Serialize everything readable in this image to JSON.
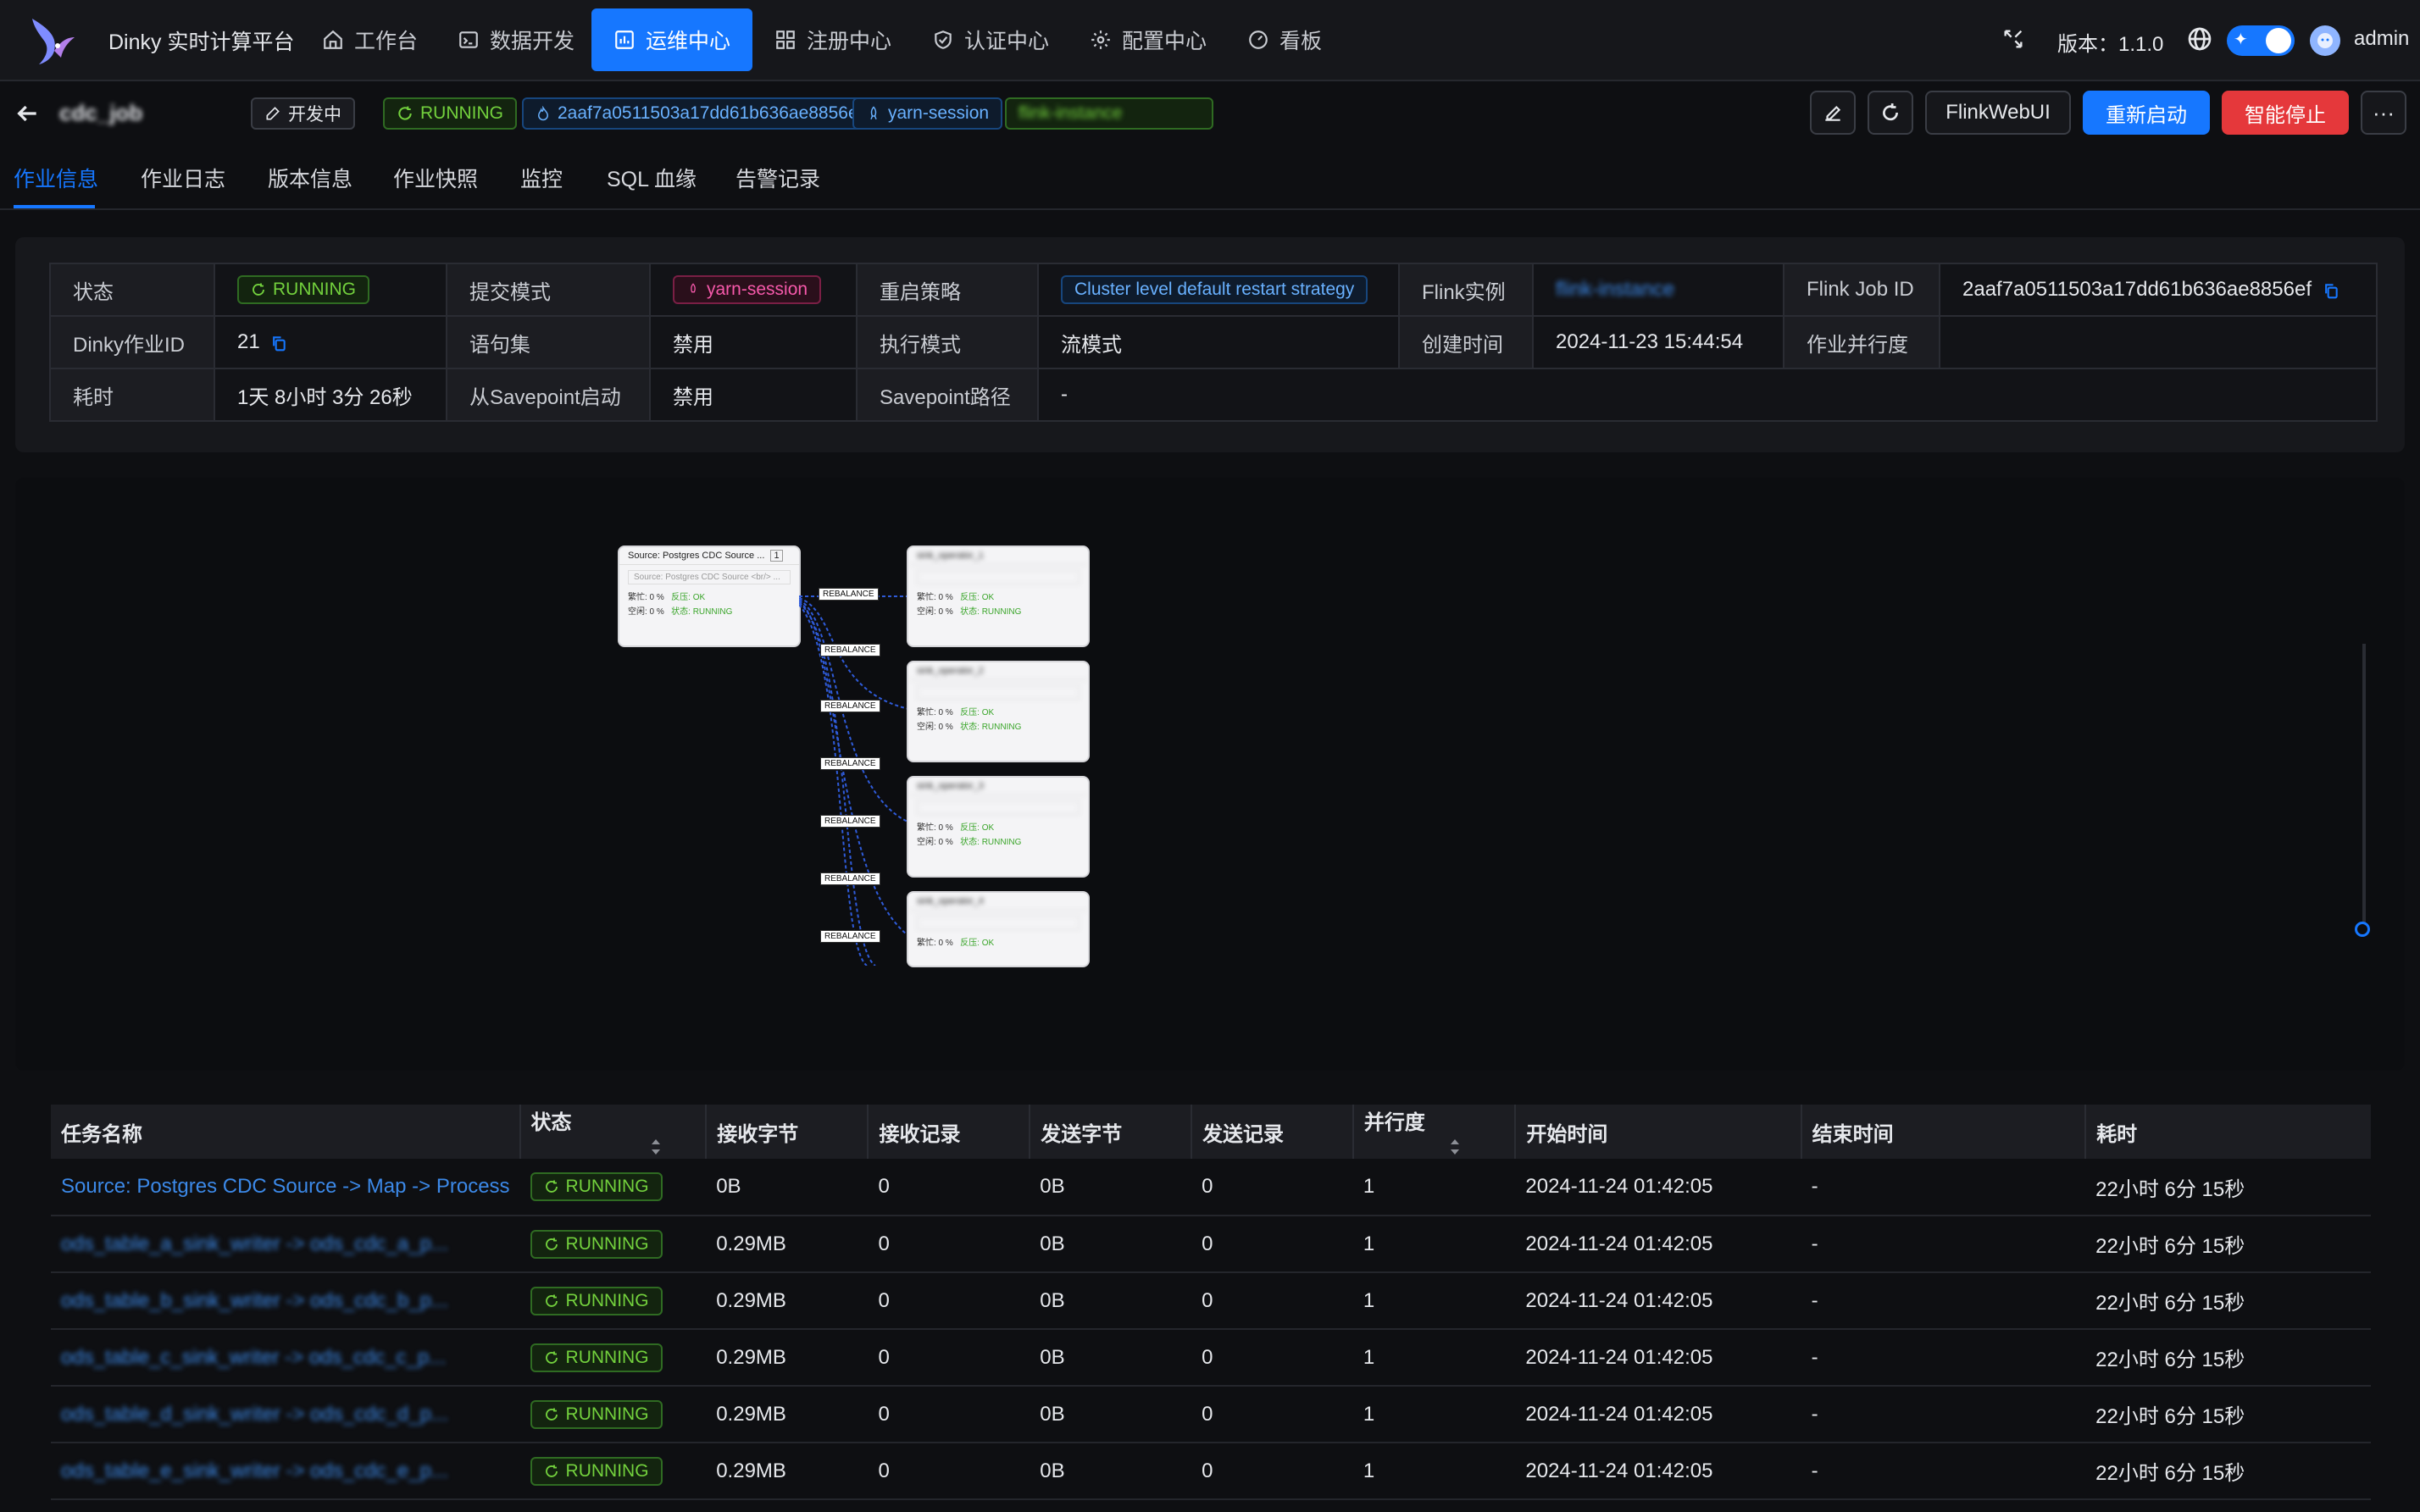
{
  "app": {
    "title": "Dinky 实时计算平台"
  },
  "nav": [
    {
      "label": "工作台",
      "icon": "home-icon"
    },
    {
      "label": "数据开发",
      "icon": "terminal-icon"
    },
    {
      "label": "运维中心",
      "icon": "dashboard-icon",
      "active": true
    },
    {
      "label": "注册中心",
      "icon": "grid-icon"
    },
    {
      "label": "认证中心",
      "icon": "shield-icon"
    },
    {
      "label": "配置中心",
      "icon": "gear-icon"
    },
    {
      "label": "看板",
      "icon": "gauge-icon"
    }
  ],
  "topright": {
    "version_label": "版本：1.1.0",
    "user": "admin"
  },
  "job": {
    "name": "cdc_job",
    "dev_tag": "开发中",
    "status": "RUNNING",
    "job_id": "2aaf7a0511503a17dd61b636ae8856ef",
    "mode": "yarn-session",
    "instance": "flink-instance",
    "actions": {
      "flinkwebui": "FlinkWebUI",
      "restart": "重新启动",
      "stop": "智能停止"
    }
  },
  "tabs": [
    "作业信息",
    "作业日志",
    "版本信息",
    "作业快照",
    "监控",
    "SQL 血缘",
    "告警记录"
  ],
  "info": {
    "row1": {
      "l1": "状态",
      "v1": "RUNNING",
      "l2": "提交模式",
      "v2": "yarn-session",
      "l3": "重启策略",
      "v3": "Cluster level default restart strategy",
      "l4": "Flink实例",
      "v4": "flink-instance",
      "l5": "Flink Job ID",
      "v5": "2aaf7a0511503a17dd61b636ae8856ef"
    },
    "row2": {
      "l1": "Dinky作业ID",
      "v1": "21",
      "l2": "语句集",
      "v2": "禁用",
      "l3": "执行模式",
      "v3": "流模式",
      "l4": "创建时间",
      "v4": "2024-11-23 15:44:54",
      "l5": "作业并行度",
      "v5": ""
    },
    "row3": {
      "l1": "耗时",
      "v1": "1天 8小时 3分 26秒",
      "l2": "从Savepoint启动",
      "v2": "禁用",
      "l3": "Savepoint路径",
      "v3": "-"
    }
  },
  "graph": {
    "source": {
      "title": "Source: Postgres CDC Source ...",
      "badge": "1",
      "sub": "Source: Postgres CDC Source <br/> ...",
      "busy": "繁忙: 0 %",
      "idle": "空闲: 0 %",
      "bp": "反压: OK",
      "st": "状态: RUNNING"
    },
    "edge_label": "REBALANCE",
    "sinks": [
      {
        "title": "sink_operator_1",
        "busy": "繁忙: 0 %",
        "idle": "空闲: 0 %",
        "bp": "反压: OK",
        "st": "状态: RUNNING"
      },
      {
        "title": "sink_operator_2",
        "busy": "繁忙: 0 %",
        "idle": "空闲: 0 %",
        "bp": "反压: OK",
        "st": "状态: RUNNING"
      },
      {
        "title": "sink_operator_3",
        "busy": "繁忙: 0 %",
        "idle": "空闲: 0 %",
        "bp": "反压: OK",
        "st": "状态: RUNNING"
      },
      {
        "title": "sink_operator_4",
        "busy": "繁忙: 0 %",
        "idle": "",
        "bp": "反压: OK",
        "st": ""
      }
    ]
  },
  "table": {
    "headers": [
      "任务名称",
      "状态",
      "接收字节",
      "接收记录",
      "发送字节",
      "发送记录",
      "并行度",
      "开始时间",
      "结束时间",
      "耗时"
    ],
    "rows": [
      [
        "Source: Postgres CDC Source -> Map -> Process",
        "RUNNING",
        "0B",
        "0",
        "0B",
        "0",
        "1",
        "2024-11-24 01:42:05",
        "-",
        "22小时 6分 15秒"
      ],
      [
        "ods_table_a_sink_writer -> ods_cdc_a_p...",
        "RUNNING",
        "0.29MB",
        "0",
        "0B",
        "0",
        "1",
        "2024-11-24 01:42:05",
        "-",
        "22小时 6分 15秒"
      ],
      [
        "ods_table_b_sink_writer -> ods_cdc_b_p...",
        "RUNNING",
        "0.29MB",
        "0",
        "0B",
        "0",
        "1",
        "2024-11-24 01:42:05",
        "-",
        "22小时 6分 15秒"
      ],
      [
        "ods_table_c_sink_writer -> ods_cdc_c_p...",
        "RUNNING",
        "0.29MB",
        "0",
        "0B",
        "0",
        "1",
        "2024-11-24 01:42:05",
        "-",
        "22小时 6分 15秒"
      ],
      [
        "ods_table_d_sink_writer -> ods_cdc_d_p...",
        "RUNNING",
        "0.29MB",
        "0",
        "0B",
        "0",
        "1",
        "2024-11-24 01:42:05",
        "-",
        "22小时 6分 15秒"
      ],
      [
        "ods_table_e_sink_writer -> ods_cdc_e_p...",
        "RUNNING",
        "0.29MB",
        "0",
        "0B",
        "0",
        "1",
        "2024-11-24 01:42:05",
        "-",
        "22小时 6分 15秒"
      ]
    ]
  }
}
